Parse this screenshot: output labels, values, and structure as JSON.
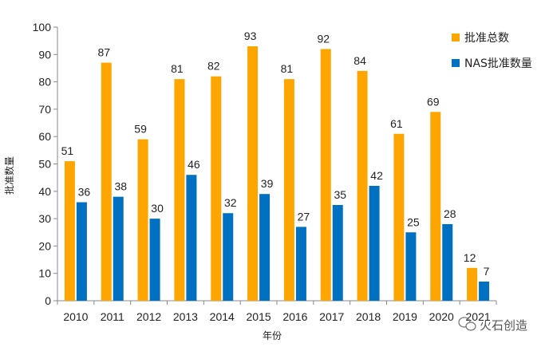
{
  "chart_data": {
    "type": "bar",
    "categories": [
      "2010",
      "2011",
      "2012",
      "2013",
      "2014",
      "2015",
      "2016",
      "2017",
      "2018",
      "2019",
      "2020",
      "2021"
    ],
    "series": [
      {
        "name": "批准总数",
        "color": "#FFA500",
        "values": [
          51,
          87,
          59,
          81,
          82,
          93,
          81,
          92,
          84,
          61,
          69,
          12
        ]
      },
      {
        "name": "NAS批准数量",
        "color": "#0070C0",
        "values": [
          36,
          38,
          30,
          46,
          32,
          39,
          27,
          35,
          42,
          25,
          28,
          7
        ]
      }
    ],
    "xlabel": "年份",
    "ylabel": "批准数量",
    "ylim": [
      0,
      100
    ],
    "yticks": [
      0,
      10,
      20,
      30,
      40,
      50,
      60,
      70,
      80,
      90,
      100
    ],
    "grid": false,
    "legend_position": "top-right"
  },
  "watermark": {
    "text": "火石创造",
    "icon": "wechat-icon"
  }
}
